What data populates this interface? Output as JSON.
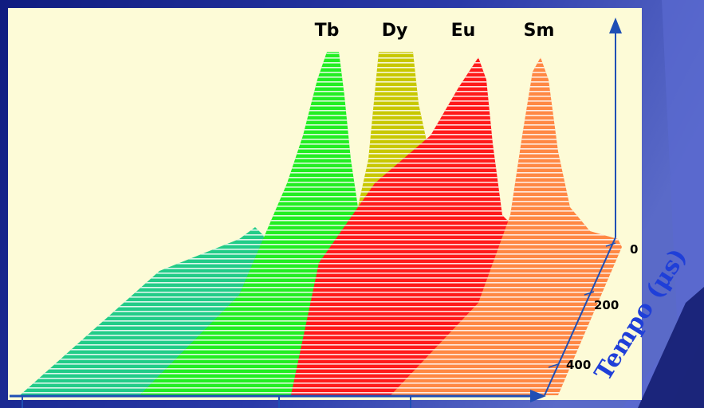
{
  "colors": {
    "slide_bg": "#1a2a9a",
    "slide_bg_light": "#5566c8",
    "panel_bg": "#fdfbd7",
    "axis": "#1f4fb5",
    "title_text": "#1f3fd8"
  },
  "chart_data": {
    "type": "area",
    "subtype": "3d-waterfall",
    "x_axis": {
      "label": "",
      "ticks": []
    },
    "y_axis": {
      "label": "Tempo (μs)",
      "ticks": [
        "0",
        "200",
        "400"
      ],
      "range": [
        0,
        400
      ]
    },
    "series": [
      {
        "name": "Tb",
        "color": "#22ee22"
      },
      {
        "name": "Dy",
        "color": "#c8c800"
      },
      {
        "name": "Eu",
        "color": "#ff1a1a"
      },
      {
        "name": "Sm",
        "color": "#ff8844"
      }
    ],
    "extra_series_colors": [
      "#22cc88"
    ]
  }
}
